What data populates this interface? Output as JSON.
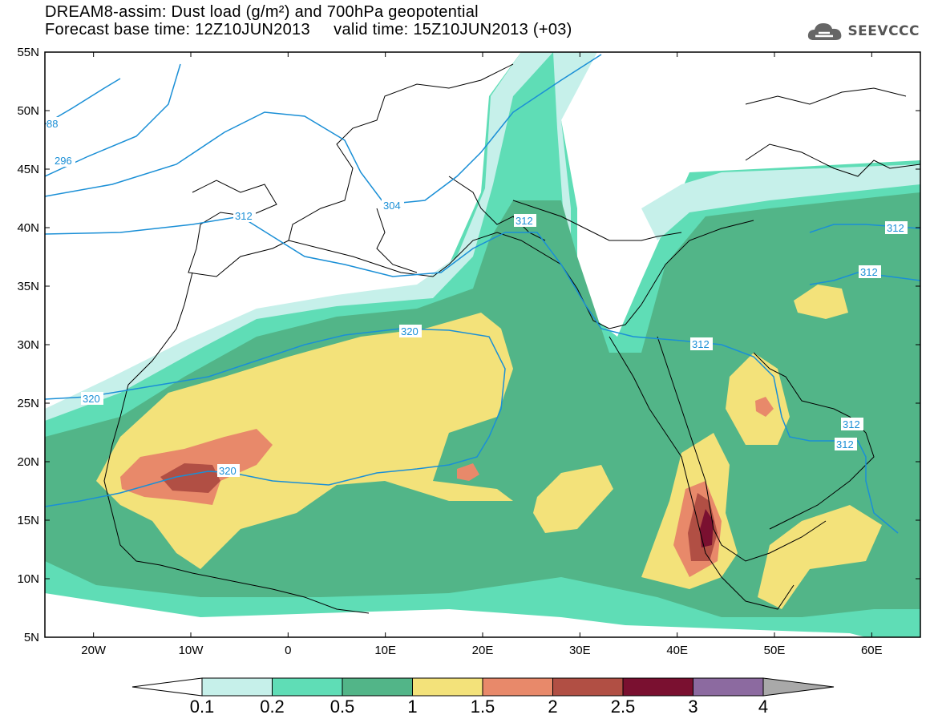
{
  "title": {
    "line1": "DREAM8-assim: Dust load (g/m²) and 700hPa geopotential",
    "line2": "Forecast base time: 12Z10JUN2013     valid time: 15Z10JUN2013 (+03)"
  },
  "logo": {
    "text": "SEEVCCC",
    "icon": "cloud-logo-icon"
  },
  "axes": {
    "lat_labels": [
      "55N",
      "50N",
      "45N",
      "40N",
      "35N",
      "30N",
      "25N",
      "20N",
      "15N",
      "10N",
      "5N"
    ],
    "lon_labels": [
      "20W",
      "10W",
      "0",
      "10E",
      "20E",
      "30E",
      "40E",
      "50E",
      "60E"
    ],
    "lat_range": [
      5,
      55
    ],
    "lon_range": [
      -25,
      65
    ]
  },
  "colorbar": {
    "labels": [
      "0.1",
      "0.2",
      "0.5",
      "1",
      "1.5",
      "2",
      "2.5",
      "3",
      "4"
    ],
    "colors": [
      "#ffffff",
      "#c6f0ea",
      "#5fddb6",
      "#52b588",
      "#f3e27a",
      "#e8896a",
      "#b14f44",
      "#7a1030",
      "#8c6aa0",
      "#a9a9a9"
    ]
  },
  "contour_labels": [
    "88",
    "296",
    "304",
    "312",
    "312",
    "320",
    "320",
    "320",
    "312",
    "312",
    "312",
    "312",
    "312"
  ],
  "colors": {
    "contour": "#1a8fd6",
    "coast": "#000000"
  }
}
